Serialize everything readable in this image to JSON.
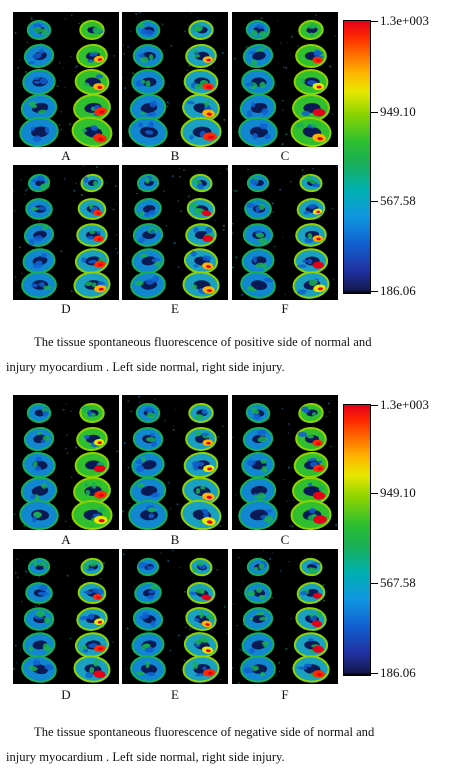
{
  "figures": [
    {
      "id": "positive",
      "panel_labels": [
        "A",
        "B",
        "C",
        "D",
        "E",
        "F"
      ],
      "colorbar": {
        "labels": [
          "1.3e+003",
          "949.10",
          "567.58",
          "186.06"
        ]
      },
      "caption_line1": "The tissue spontaneous fluorescence of positive side of normal and",
      "caption_line2": "injury myocardium . Left side normal, right side injury."
    },
    {
      "id": "negative",
      "panel_labels": [
        "A",
        "B",
        "C",
        "D",
        "E",
        "F"
      ],
      "colorbar": {
        "labels": [
          "1.3e+003",
          "949.10",
          "567.58",
          "186.06"
        ]
      },
      "caption_line1": "The tissue spontaneous fluorescence of negative side of normal and",
      "caption_line2": "injury myocardium . Left side normal, right side injury."
    }
  ],
  "colors": {
    "scale_high": "#e5001a",
    "scale_mid_high": "#e8e800",
    "scale_mid": "#2fbf2f",
    "scale_mid_low": "#1096e0",
    "scale_low": "#141a50"
  }
}
